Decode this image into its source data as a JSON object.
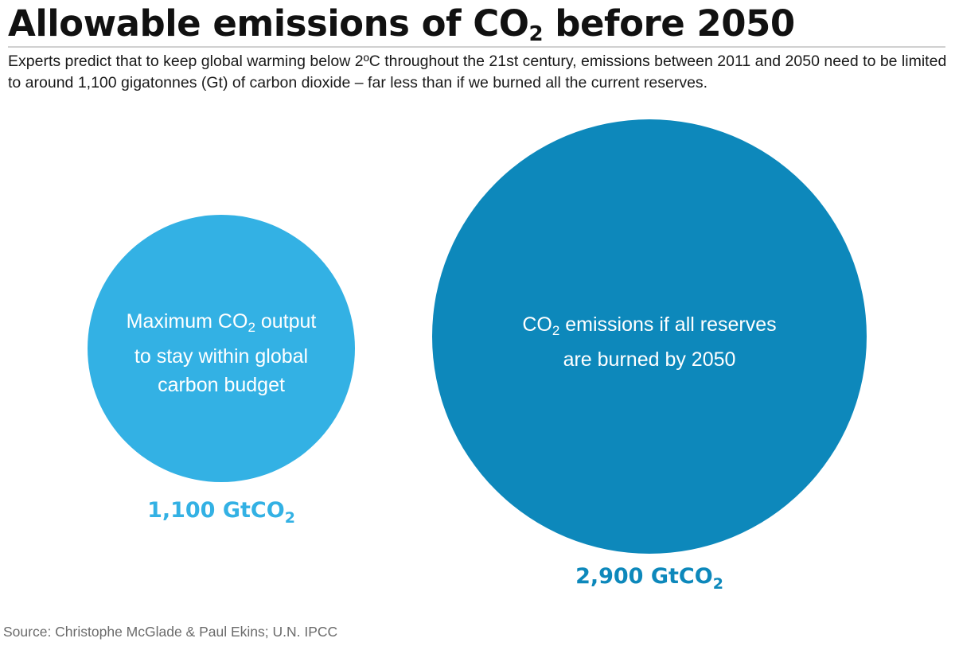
{
  "header": {
    "title_pre": "Allowable emissions of CO",
    "title_sub": "2",
    "title_post": " before 2050",
    "subtitle": "Experts predict that to keep global warming below 2ºC throughout the 21st century, emissions between 2011 and 2050 need to be limited to around 1,100 gigatonnes (Gt) of carbon dioxide – far less than if we burned all the current reserves."
  },
  "source": "Source: Christophe McGlade & Paul Ekins; U.N. IPCC",
  "colors": {
    "budget": "#33b1e4",
    "reserves": "#0d88bb",
    "title": "#111111"
  },
  "chart_data": {
    "type": "bubble",
    "unit": "GtCO2",
    "items": [
      {
        "value": 1100,
        "value_text": "1,100 GtCO",
        "value_sub": "2",
        "label_pre": "Maximum CO",
        "label_sub": "2",
        "label_post": " output",
        "label_line2": "to stay within global",
        "label_line3": "carbon budget",
        "color": "#33b1e4"
      },
      {
        "value": 2900,
        "value_text": "2,900 GtCO",
        "value_sub": "2",
        "label_pre": "CO",
        "label_sub": "2",
        "label_post": " emissions if all reserves",
        "label_line2": "are burned by 2050",
        "color": "#0d88bb"
      }
    ]
  }
}
